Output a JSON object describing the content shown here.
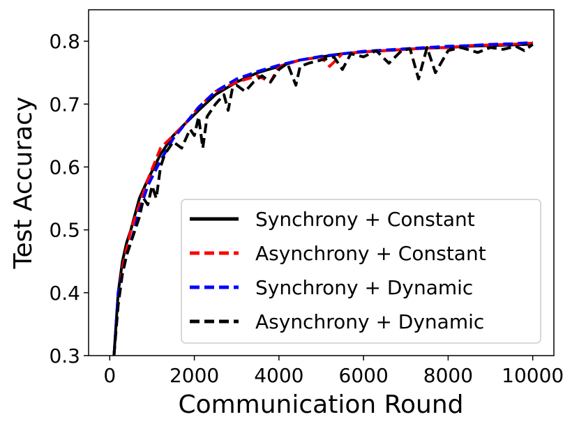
{
  "chart_data": {
    "type": "line",
    "xlabel": "Communication Round",
    "ylabel": "Test Accuracy",
    "xlim": [
      -500,
      10500
    ],
    "ylim": [
      0.3,
      0.85
    ],
    "x_ticks": [
      0,
      2000,
      4000,
      6000,
      8000,
      10000
    ],
    "x_tick_labels": [
      "0",
      "2000",
      "4000",
      "6000",
      "8000",
      "10000"
    ],
    "y_ticks": [
      0.3,
      0.4,
      0.5,
      0.6,
      0.7,
      0.8
    ],
    "y_tick_labels": [
      "0.3",
      "0.4",
      "0.5",
      "0.6",
      "0.7",
      "0.8"
    ],
    "grid": false,
    "legend_position": "lower-right",
    "series": [
      {
        "name": "Synchrony + Constant",
        "color": "#000000",
        "style": "solid",
        "x": [
          100,
          200,
          300,
          400,
          500,
          700,
          900,
          1200,
          1500,
          1800,
          2100,
          2500,
          3000,
          3500,
          4000,
          4500,
          5000,
          5500,
          6000,
          6500,
          7000,
          7500,
          8000,
          8500,
          9000,
          9500,
          9900,
          10000
        ],
        "y": [
          0.3,
          0.4,
          0.45,
          0.48,
          0.5,
          0.55,
          0.58,
          0.62,
          0.65,
          0.67,
          0.69,
          0.715,
          0.735,
          0.75,
          0.76,
          0.77,
          0.775,
          0.78,
          0.783,
          0.785,
          0.787,
          0.789,
          0.79,
          0.792,
          0.793,
          0.794,
          0.795,
          0.796
        ]
      },
      {
        "name": "Asynchrony + Constant",
        "color": "#ff0000",
        "style": "dashed",
        "x": [
          100,
          200,
          300,
          400,
          500,
          700,
          900,
          1200,
          1500,
          1800,
          2100,
          2500,
          3000,
          3500,
          3800,
          4000,
          4500,
          5000,
          5200,
          5500,
          6000,
          6500,
          7000,
          7500,
          8000,
          8500,
          9000,
          9500,
          10000
        ],
        "y": [
          0.3,
          0.39,
          0.44,
          0.47,
          0.5,
          0.54,
          0.58,
          0.63,
          0.65,
          0.67,
          0.695,
          0.72,
          0.735,
          0.745,
          0.735,
          0.76,
          0.77,
          0.775,
          0.76,
          0.78,
          0.783,
          0.785,
          0.787,
          0.789,
          0.79,
          0.793,
          0.794,
          0.795,
          0.797
        ]
      },
      {
        "name": "Synchrony + Dynamic",
        "color": "#0000ff",
        "style": "dashed",
        "x": [
          100,
          200,
          300,
          400,
          500,
          700,
          900,
          1200,
          1500,
          1800,
          2100,
          2500,
          3000,
          3500,
          4000,
          4500,
          5000,
          5500,
          6000,
          6500,
          7000,
          7500,
          8000,
          8500,
          9000,
          9500,
          10000
        ],
        "y": [
          0.3,
          0.4,
          0.43,
          0.46,
          0.48,
          0.53,
          0.57,
          0.61,
          0.645,
          0.67,
          0.695,
          0.72,
          0.74,
          0.752,
          0.762,
          0.77,
          0.776,
          0.78,
          0.784,
          0.786,
          0.788,
          0.79,
          0.792,
          0.793,
          0.795,
          0.796,
          0.798
        ]
      },
      {
        "name": "Asynchrony + Dynamic",
        "color": "#000000",
        "style": "dashed",
        "x": [
          100,
          200,
          300,
          400,
          500,
          600,
          700,
          800,
          900,
          1000,
          1100,
          1200,
          1300,
          1500,
          1700,
          1900,
          2000,
          2100,
          2200,
          2300,
          2500,
          2700,
          2800,
          2900,
          3000,
          3200,
          3400,
          3600,
          3800,
          4000,
          4200,
          4400,
          4500,
          4700,
          5000,
          5300,
          5500,
          5700,
          6000,
          6300,
          6600,
          6900,
          7100,
          7300,
          7500,
          7700,
          8000,
          8300,
          8700,
          9000,
          9300,
          9600,
          9800,
          10000
        ],
        "y": [
          0.3,
          0.38,
          0.43,
          0.46,
          0.48,
          0.5,
          0.52,
          0.55,
          0.54,
          0.57,
          0.55,
          0.6,
          0.62,
          0.64,
          0.63,
          0.66,
          0.65,
          0.68,
          0.63,
          0.68,
          0.7,
          0.715,
          0.69,
          0.725,
          0.73,
          0.72,
          0.735,
          0.745,
          0.735,
          0.755,
          0.765,
          0.73,
          0.76,
          0.765,
          0.77,
          0.775,
          0.755,
          0.78,
          0.775,
          0.785,
          0.765,
          0.785,
          0.788,
          0.74,
          0.79,
          0.75,
          0.785,
          0.79,
          0.782,
          0.79,
          0.787,
          0.792,
          0.785,
          0.795
        ]
      }
    ]
  }
}
